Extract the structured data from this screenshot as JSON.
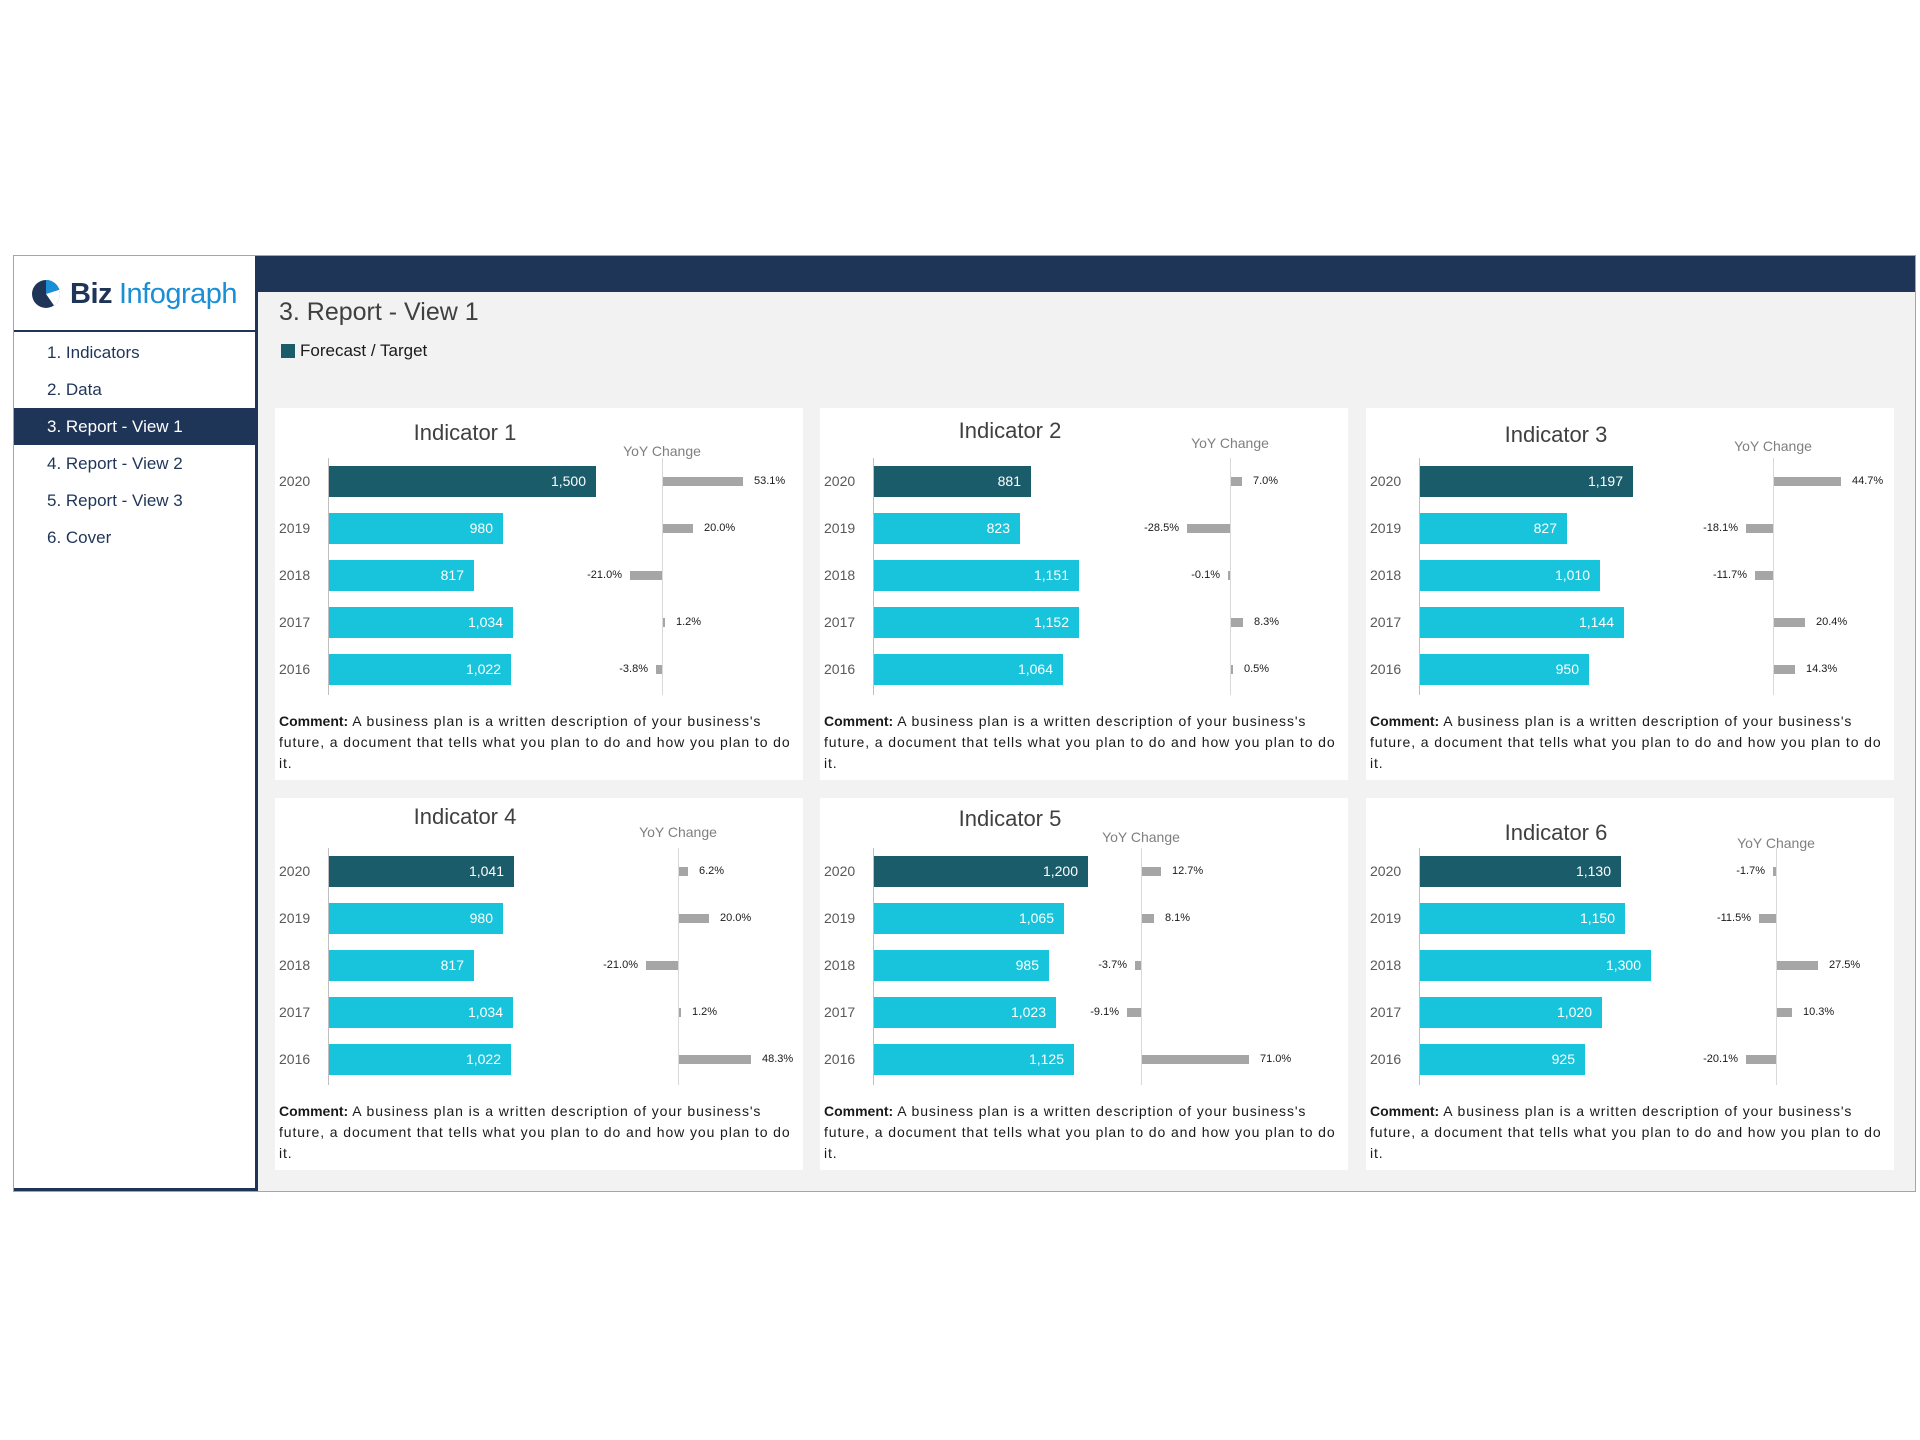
{
  "app": {
    "logo": {
      "biz": "Biz",
      "infograph": "Infograph",
      "icon": "pie-logo-icon"
    },
    "nav": [
      {
        "label": "1. Indicators"
      },
      {
        "label": "2. Data"
      },
      {
        "label": "3. Report - View 1",
        "active": true
      },
      {
        "label": "4. Report - View 2"
      },
      {
        "label": "5. Report - View 3"
      },
      {
        "label": "6. Cover"
      }
    ],
    "page_title": "3. Report - View 1",
    "legend_label": "Forecast / Target",
    "yoy_title": "YoY Change",
    "comment_label": "Comment:",
    "comment_text": " A business plan is a written description of your business's future, a document that tells what you plan to do and how you plan to do it.",
    "colors": {
      "navy": "#1f3558",
      "forecast": "#1b5c6b",
      "actual": "#17c4db",
      "yoy": "#a6a6a6"
    }
  },
  "chart_data": [
    {
      "type": "bar",
      "title": "Indicator 1",
      "categories": [
        "2020",
        "2019",
        "2018",
        "2017",
        "2016"
      ],
      "values": [
        1500,
        980,
        817,
        1034,
        1022
      ],
      "labels": [
        "1,500",
        "980",
        "817",
        "1,034",
        "1,022"
      ],
      "yoy": [
        53.1,
        20.0,
        -21.0,
        1.2,
        -3.8
      ],
      "yoy_labels": [
        "53.1%",
        "20.0%",
        "-21.0%",
        "1.2%",
        "-3.8%"
      ]
    },
    {
      "type": "bar",
      "title": "Indicator 2",
      "categories": [
        "2020",
        "2019",
        "2018",
        "2017",
        "2016"
      ],
      "values": [
        881,
        823,
        1151,
        1152,
        1064
      ],
      "labels": [
        "881",
        "823",
        "1,151",
        "1,152",
        "1,064"
      ],
      "yoy": [
        7.0,
        -28.5,
        -0.1,
        8.3,
        0.5
      ],
      "yoy_labels": [
        "7.0%",
        "-28.5%",
        "-0.1%",
        "8.3%",
        "0.5%"
      ]
    },
    {
      "type": "bar",
      "title": "Indicator 3",
      "categories": [
        "2020",
        "2019",
        "2018",
        "2017",
        "2016"
      ],
      "values": [
        1197,
        827,
        1010,
        1144,
        950
      ],
      "labels": [
        "1,197",
        "827",
        "1,010",
        "1,144",
        "950"
      ],
      "yoy": [
        44.7,
        -18.1,
        -11.7,
        20.4,
        14.3
      ],
      "yoy_labels": [
        "44.7%",
        "-18.1%",
        "-11.7%",
        "20.4%",
        "14.3%"
      ]
    },
    {
      "type": "bar",
      "title": "Indicator 4",
      "categories": [
        "2020",
        "2019",
        "2018",
        "2017",
        "2016"
      ],
      "values": [
        1041,
        980,
        817,
        1034,
        1022
      ],
      "labels": [
        "1,041",
        "980",
        "817",
        "1,034",
        "1,022"
      ],
      "yoy": [
        6.2,
        20.0,
        -21.0,
        1.2,
        48.3
      ],
      "yoy_labels": [
        "6.2%",
        "20.0%",
        "-21.0%",
        "1.2%",
        "48.3%"
      ]
    },
    {
      "type": "bar",
      "title": "Indicator 5",
      "categories": [
        "2020",
        "2019",
        "2018",
        "2017",
        "2016"
      ],
      "values": [
        1200,
        1065,
        985,
        1023,
        1125
      ],
      "labels": [
        "1,200",
        "1,065",
        "985",
        "1,023",
        "1,125"
      ],
      "yoy": [
        12.7,
        8.1,
        -3.7,
        -9.1,
        71.0
      ],
      "yoy_labels": [
        "12.7%",
        "8.1%",
        "-3.7%",
        "-9.1%",
        "71.0%"
      ]
    },
    {
      "type": "bar",
      "title": "Indicator 6",
      "categories": [
        "2020",
        "2019",
        "2018",
        "2017",
        "2016"
      ],
      "values": [
        1130,
        1150,
        1300,
        1020,
        925
      ],
      "labels": [
        "1,130",
        "1,150",
        "1,300",
        "1,020",
        "925"
      ],
      "yoy": [
        -1.7,
        -11.5,
        27.5,
        10.3,
        -20.1
      ],
      "yoy_labels": [
        "-1.7%",
        "-11.5%",
        "27.5%",
        "10.3%",
        "-20.1%"
      ]
    }
  ]
}
